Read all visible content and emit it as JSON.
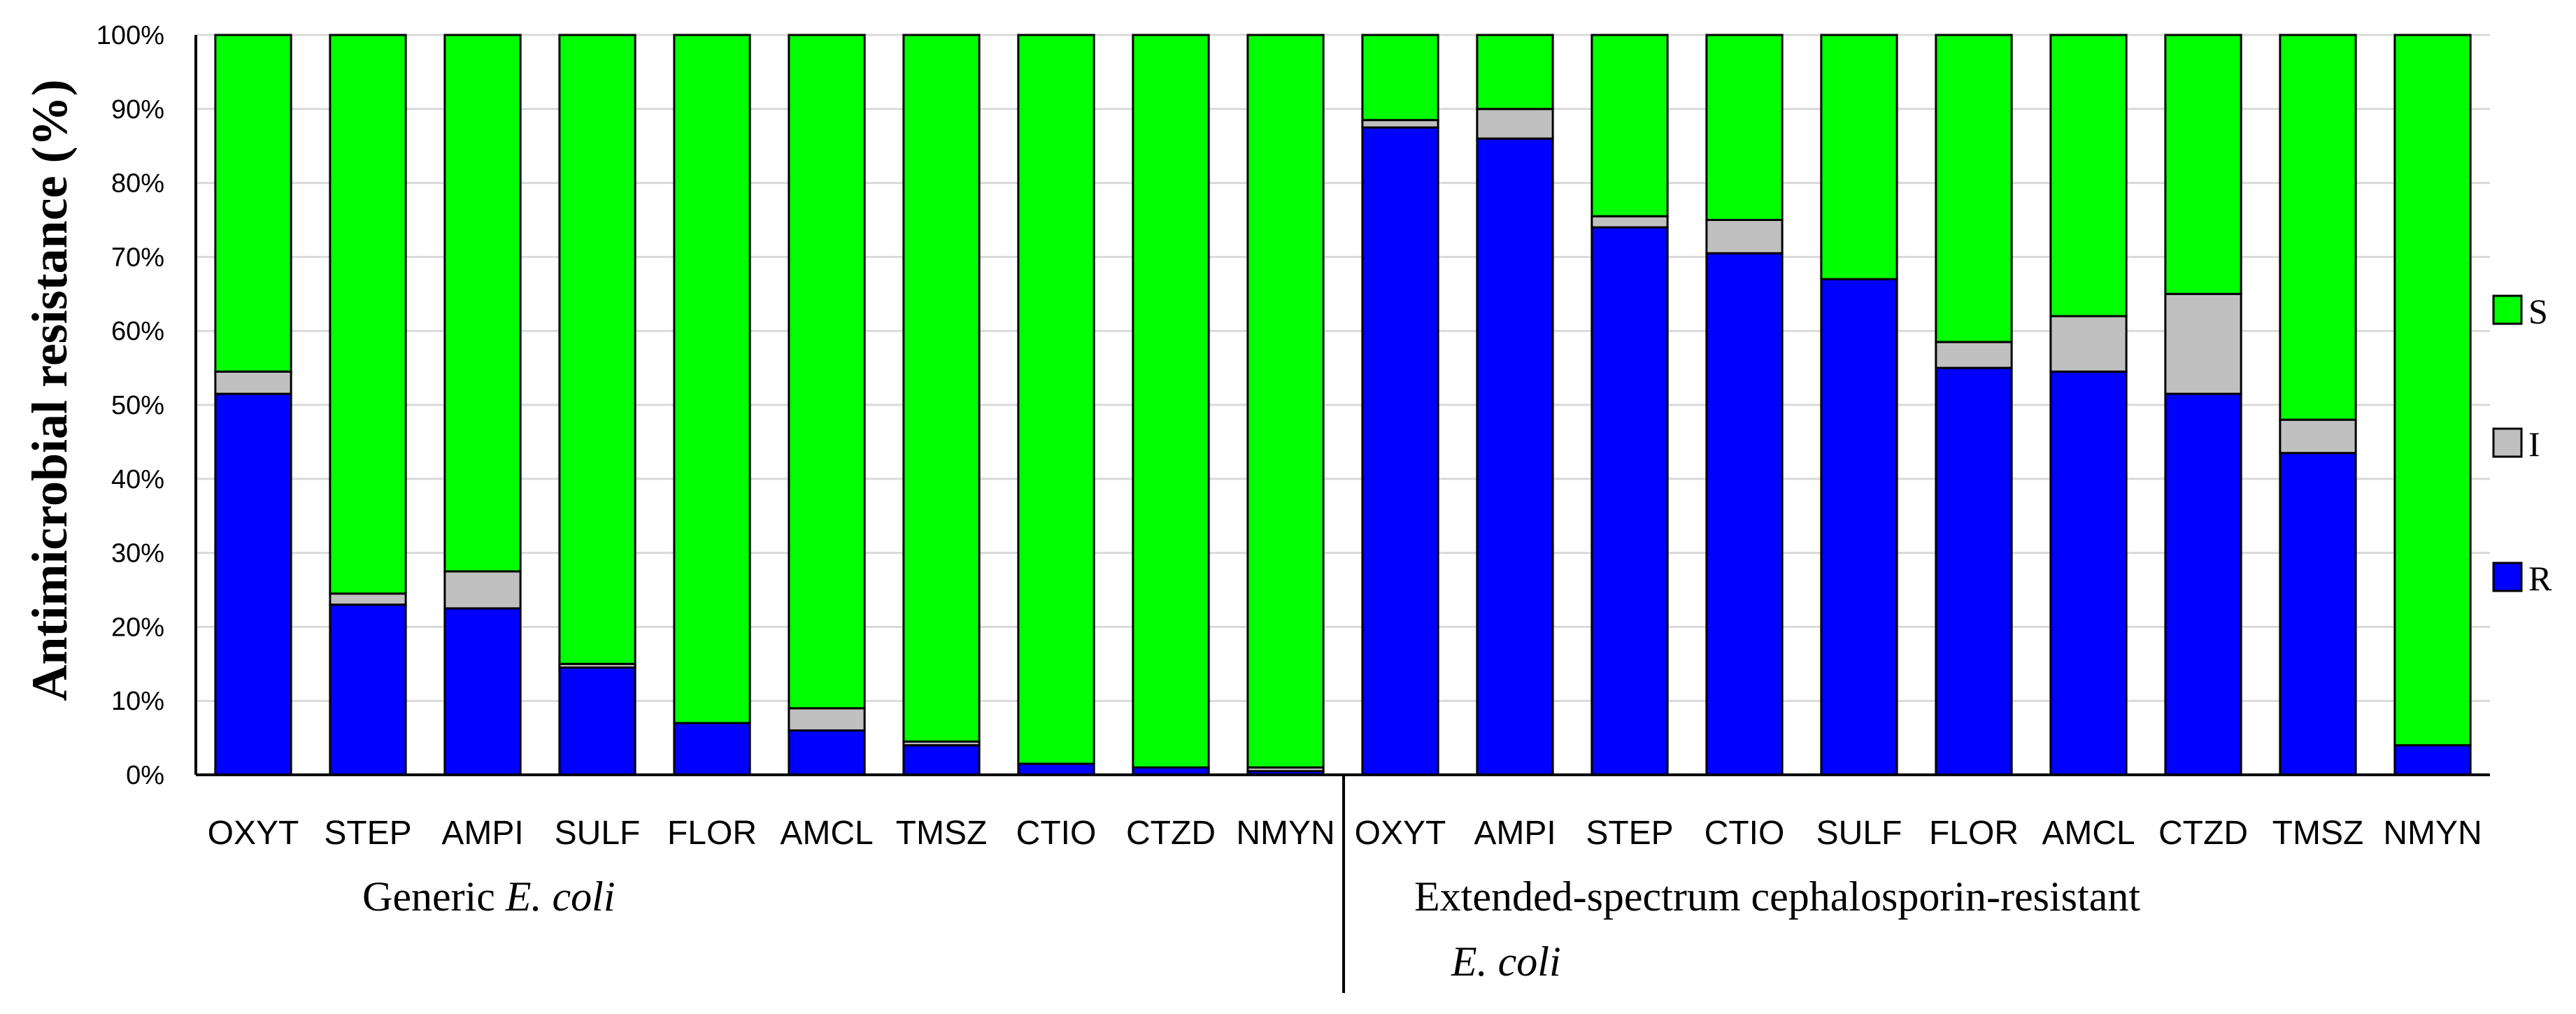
{
  "chart_data": {
    "type": "bar",
    "stacked": true,
    "ylabel": "Antimicrobial resistance (%)",
    "ylim": [
      0,
      100
    ],
    "yticks": [
      "0%",
      "10%",
      "20%",
      "30%",
      "40%",
      "50%",
      "60%",
      "70%",
      "80%",
      "90%",
      "100%"
    ],
    "legend": [
      "S",
      "I",
      "R"
    ],
    "legend_position": "right",
    "colors": {
      "R": "#0000ff",
      "I": "#c0c0c0",
      "S": "#00ff00"
    },
    "groups": [
      {
        "label_prefix": "Generic ",
        "label_italic": "E. coli",
        "categories": [
          "OXYT",
          "STEP",
          "AMPI",
          "SULF",
          "FLOR",
          "AMCL",
          "TMSZ",
          "CTIO",
          "CTZD",
          "NMYN"
        ],
        "R": [
          51.5,
          23,
          22.5,
          14.5,
          7,
          6,
          4,
          1.5,
          1,
          0.5
        ],
        "I": [
          3,
          1.5,
          5,
          0.5,
          0,
          3,
          0.5,
          0,
          0,
          0.5
        ],
        "S": [
          45.5,
          75.5,
          72.5,
          85,
          93,
          91,
          95.5,
          98.5,
          99,
          99
        ]
      },
      {
        "label_line1": "Extended-spectrum cephalosporin-resistant",
        "label_line2_italic": "E. coli",
        "categories": [
          "OXYT",
          "AMPI",
          "STEP",
          "CTIO",
          "SULF",
          "FLOR",
          "AMCL",
          "CTZD",
          "TMSZ",
          "NMYN"
        ],
        "R": [
          87.5,
          86,
          74,
          70.5,
          67,
          55,
          54.5,
          51.5,
          43.5,
          4
        ],
        "I": [
          1,
          4,
          1.5,
          4.5,
          0,
          3.5,
          7.5,
          13.5,
          4.5,
          0
        ],
        "S": [
          11.5,
          10,
          24.5,
          25,
          33,
          41.5,
          38,
          35,
          52,
          96
        ]
      }
    ]
  }
}
